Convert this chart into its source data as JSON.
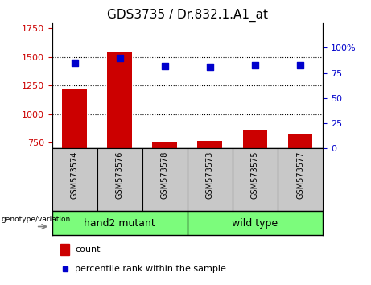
{
  "title": "GDS3735 / Dr.832.1.A1_at",
  "samples": [
    "GSM573574",
    "GSM573576",
    "GSM573578",
    "GSM573573",
    "GSM573575",
    "GSM573577"
  ],
  "counts": [
    1220,
    1545,
    760,
    763,
    855,
    820
  ],
  "percentile_ranks": [
    85,
    90,
    82,
    81,
    83,
    83
  ],
  "ylim_left": [
    700,
    1800
  ],
  "ylim_right": [
    0,
    125
  ],
  "yticks_left": [
    750,
    1000,
    1250,
    1500,
    1750
  ],
  "yticks_right": [
    0,
    25,
    50,
    75,
    100
  ],
  "hlines": [
    1000,
    1250,
    1500
  ],
  "bar_color": "#CC0000",
  "dot_color": "#0000CC",
  "bar_bottom": 700,
  "bar_width": 0.55,
  "label_area_color": "#C8C8C8",
  "group_label_color": "#7CFC7C",
  "group1_label": "hand2 mutant",
  "group2_label": "wild type",
  "group1_count": 3,
  "group2_count": 3,
  "genotype_label": "genotype/variation",
  "legend_count_label": "count",
  "legend_pct_label": "percentile rank within the sample"
}
